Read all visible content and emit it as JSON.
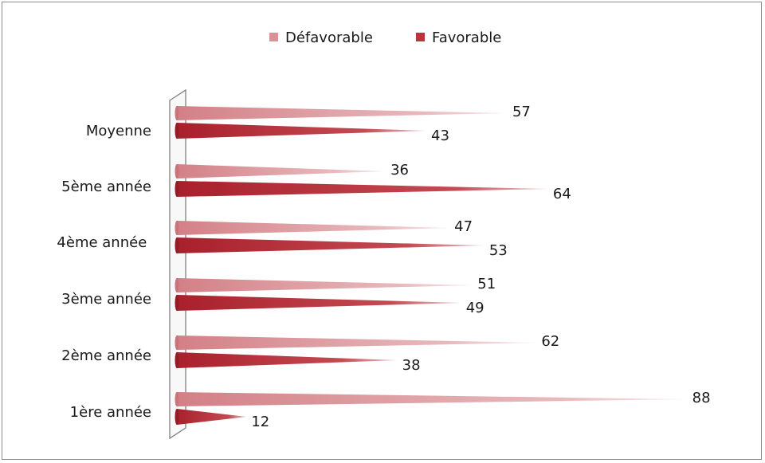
{
  "chart_data": {
    "type": "bar",
    "orientation": "horizontal",
    "categories": [
      "Moyenne",
      "5ème année",
      "4ème année ",
      "3ème année",
      "2ème année",
      "1ère année"
    ],
    "series": [
      {
        "name": "Défavorable",
        "values": [
          57,
          36,
          47,
          51,
          62,
          88
        ]
      },
      {
        "name": "Favorable",
        "values": [
          43,
          64,
          53,
          49,
          38,
          12
        ]
      }
    ],
    "xlim": [
      0,
      100
    ],
    "grid": false,
    "legend": "top-center",
    "colors": {
      "Défavorable": "#d99296",
      "Favorable": "#b8353e"
    }
  }
}
